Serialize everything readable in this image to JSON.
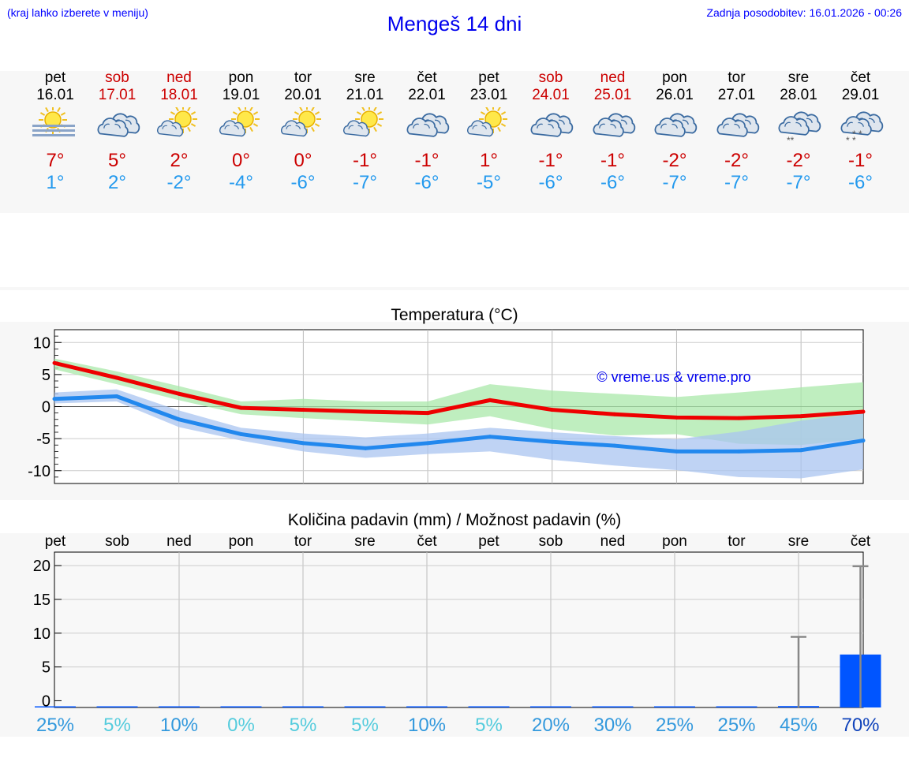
{
  "header": {
    "menu_hint": "(kraj lahko izberete v meniju)",
    "title": "Mengeš 14 dni",
    "last_update": "Zadnja posodobitev: 16.01.2026 - 00:26"
  },
  "days": [
    {
      "name": "pet",
      "date": "16.01",
      "icon": "sun-fog-icon",
      "max": "7°",
      "min": "1°",
      "weekend": false
    },
    {
      "name": "sob",
      "date": "17.01",
      "icon": "cloudy-icon",
      "max": "5°",
      "min": "2°",
      "weekend": true
    },
    {
      "name": "ned",
      "date": "18.01",
      "icon": "partly-cloudy-icon",
      "max": "2°",
      "min": "-2°",
      "weekend": true
    },
    {
      "name": "pon",
      "date": "19.01",
      "icon": "partly-cloudy-icon",
      "max": "0°",
      "min": "-4°",
      "weekend": false
    },
    {
      "name": "tor",
      "date": "20.01",
      "icon": "partly-cloudy-icon",
      "max": "0°",
      "min": "-6°",
      "weekend": false
    },
    {
      "name": "sre",
      "date": "21.01",
      "icon": "partly-cloudy-icon",
      "max": "-1°",
      "min": "-7°",
      "weekend": false
    },
    {
      "name": "čet",
      "date": "22.01",
      "icon": "cloudy-icon",
      "max": "-1°",
      "min": "-6°",
      "weekend": false
    },
    {
      "name": "pet",
      "date": "23.01",
      "icon": "partly-cloudy-icon",
      "max": "1°",
      "min": "-5°",
      "weekend": false
    },
    {
      "name": "sob",
      "date": "24.01",
      "icon": "cloudy-icon",
      "max": "-1°",
      "min": "-6°",
      "weekend": true
    },
    {
      "name": "ned",
      "date": "25.01",
      "icon": "cloudy-icon",
      "max": "-1°",
      "min": "-6°",
      "weekend": true
    },
    {
      "name": "pon",
      "date": "26.01",
      "icon": "cloudy-icon",
      "max": "-2°",
      "min": "-7°",
      "weekend": false
    },
    {
      "name": "tor",
      "date": "27.01",
      "icon": "cloudy-icon",
      "max": "-2°",
      "min": "-7°",
      "weekend": false
    },
    {
      "name": "sre",
      "date": "28.01",
      "icon": "light-snow-icon",
      "max": "-2°",
      "min": "-7°",
      "weekend": false
    },
    {
      "name": "čet",
      "date": "29.01",
      "icon": "snow-icon",
      "max": "-1°",
      "min": "-6°",
      "weekend": false
    }
  ],
  "chart_data": [
    {
      "type": "line",
      "title": "Temperatura (°C)",
      "watermark": "© vreme.us & vreme.pro",
      "ylim": [
        -12,
        12
      ],
      "yticks": [
        10,
        5,
        0,
        -5,
        -10
      ],
      "grid": true,
      "x": [
        "16.01",
        "17.01",
        "18.01",
        "19.01",
        "20.01",
        "21.01",
        "22.01",
        "23.01",
        "24.01",
        "25.01",
        "26.01",
        "27.01",
        "28.01",
        "29.01"
      ],
      "series": [
        {
          "color": "#ee0000",
          "values": [
            6.8,
            4.5,
            2.0,
            -0.2,
            -0.5,
            -0.8,
            -1.0,
            1.0,
            -0.5,
            -1.2,
            -1.7,
            -1.8,
            -1.5,
            -0.8
          ]
        },
        {
          "color": "#2288ee",
          "values": [
            1.2,
            1.6,
            -2.0,
            -4.3,
            -5.7,
            -6.5,
            -5.7,
            -4.7,
            -5.5,
            -6.1,
            -7.0,
            -7.0,
            -6.8,
            -5.3
          ]
        }
      ],
      "bands": [
        {
          "color": "#aae8aa",
          "upper": [
            7.5,
            5.5,
            3.2,
            0.8,
            1.2,
            0.8,
            0.8,
            3.5,
            2.5,
            2.0,
            1.5,
            2.2,
            3.0,
            3.8
          ],
          "lower": [
            5.8,
            3.5,
            1.0,
            -1.2,
            -1.8,
            -2.3,
            -2.8,
            -1.5,
            -3.5,
            -4.5,
            -4.3,
            -5.8,
            -6.0,
            -5.0
          ]
        },
        {
          "color": "#aac4f0",
          "upper": [
            2.2,
            2.7,
            -0.6,
            -3.3,
            -4.2,
            -4.8,
            -4.2,
            -3.3,
            -4.0,
            -4.6,
            -5.1,
            -3.9,
            -2.2,
            -1.0
          ],
          "lower": [
            0.5,
            0.8,
            -3.2,
            -5.3,
            -7.0,
            -8.0,
            -7.4,
            -7.0,
            -8.3,
            -9.2,
            -9.9,
            -11.0,
            -11.2,
            -9.8
          ]
        }
      ]
    },
    {
      "type": "bar",
      "title": "Količina padavin (mm) / Možnost padavin (%)",
      "ylim": [
        -1,
        22
      ],
      "yticks": [
        20,
        15,
        10,
        5,
        0
      ],
      "grid": true,
      "categories": [
        "pet",
        "sob",
        "ned",
        "pon",
        "tor",
        "sre",
        "čet",
        "pet",
        "sob",
        "ned",
        "pon",
        "tor",
        "sre",
        "čet"
      ],
      "values": [
        0,
        0,
        0,
        0,
        0,
        0,
        0,
        0,
        0,
        0,
        0,
        0,
        0.2,
        7.5
      ],
      "error_max": [
        0,
        0,
        0,
        0,
        0,
        0,
        0,
        0,
        0,
        0,
        0,
        0,
        10,
        20
      ],
      "probability": [
        "25%",
        "5%",
        "10%",
        "0%",
        "5%",
        "5%",
        "10%",
        "5%",
        "20%",
        "30%",
        "25%",
        "25%",
        "45%",
        "70%"
      ],
      "probability_colors": [
        "#3399dd",
        "#55ccdd",
        "#3399dd",
        "#55ccdd",
        "#55ccdd",
        "#55ccdd",
        "#3399dd",
        "#55ccdd",
        "#3399dd",
        "#3399dd",
        "#3399dd",
        "#3399dd",
        "#3399dd",
        "#1144bb"
      ]
    }
  ]
}
